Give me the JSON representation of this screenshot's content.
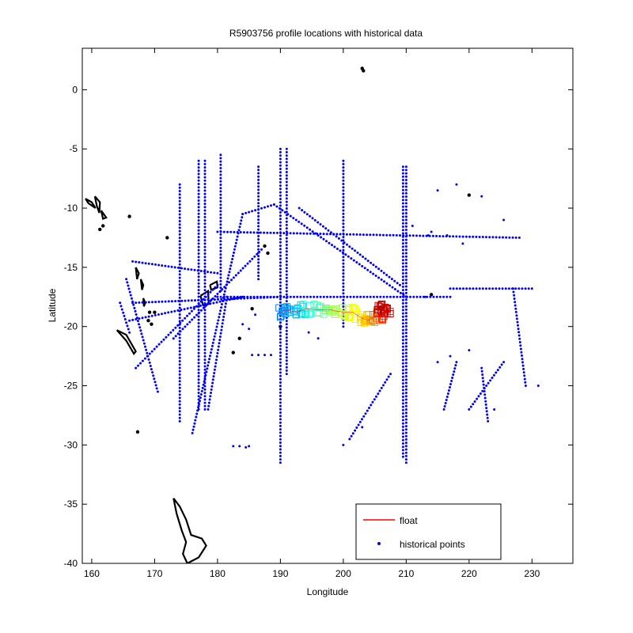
{
  "chart_data": {
    "type": "scatter",
    "title": "R5903756 profile locations with historical data",
    "xlabel": "Longitude",
    "ylabel": "Latitude",
    "xlim": [
      158.5,
      236.5
    ],
    "ylim": [
      -40,
      3.5
    ],
    "xticks": [
      160,
      170,
      180,
      190,
      200,
      210,
      220,
      230
    ],
    "yticks": [
      0,
      -5,
      -10,
      -15,
      -20,
      -25,
      -30,
      -35,
      -40
    ],
    "grid": false,
    "legend": {
      "placement": "bottom-right",
      "entries": [
        {
          "label": "float",
          "color": "#ff0000",
          "marker": "line"
        },
        {
          "label": "historical points",
          "color": "#0000ff",
          "marker": "dot"
        }
      ]
    },
    "series": [
      {
        "name": "historical points",
        "color": "#0000ff",
        "lines": [
          {
            "from": [
              190,
              -5.0
            ],
            "to": [
              190,
              -31.5
            ]
          },
          {
            "from": [
              191,
              -5.0
            ],
            "to": [
              191,
              -24.0
            ]
          },
          {
            "from": [
              209.5,
              -6.5
            ],
            "to": [
              209.5,
              -31.0
            ]
          },
          {
            "from": [
              210,
              -6.5
            ],
            "to": [
              210,
              -31.5
            ]
          },
          {
            "from": [
              177,
              -6.0
            ],
            "to": [
              177,
              -27.0
            ]
          },
          {
            "from": [
              178,
              -6.0
            ],
            "to": [
              178,
              -27.0
            ]
          },
          {
            "from": [
              186.5,
              -6.5
            ],
            "to": [
              186.5,
              -16.0
            ]
          },
          {
            "from": [
              200,
              -6.0
            ],
            "to": [
              200,
              -20.0
            ]
          },
          {
            "from": [
              180.5,
              -5.5
            ],
            "to": [
              180.5,
              -17.0
            ]
          },
          {
            "from": [
              174,
              -8.0
            ],
            "to": [
              174,
              -28.0
            ]
          },
          {
            "from": [
              227,
              -16.8
            ],
            "to": [
              229,
              -25.0
            ]
          },
          {
            "from": [
              166.5,
              -14.5
            ],
            "to": [
              180,
              -15.5
            ]
          },
          {
            "from": [
              166.5,
              -18.0
            ],
            "to": [
              190,
              -17.5
            ]
          },
          {
            "from": [
              180,
              -12.0
            ],
            "to": [
              228,
              -12.5
            ]
          },
          {
            "from": [
              180,
              -17.5
            ],
            "to": [
              217,
              -17.5
            ]
          },
          {
            "from": [
              217,
              -16.8
            ],
            "to": [
              230,
              -16.8
            ]
          },
          {
            "from": [
              184,
              -10.5
            ],
            "to": [
              189,
              -9.7
            ]
          },
          {
            "from": [
              189,
              -9.7
            ],
            "to": [
              210,
              -17.5
            ]
          },
          {
            "from": [
              193,
              -10.0
            ],
            "to": [
              209,
              -16.5
            ]
          },
          {
            "from": [
              184,
              -10.5
            ],
            "to": [
              176,
              -29.0
            ]
          },
          {
            "from": [
              181.5,
              -17.5
            ],
            "to": [
              178.5,
              -27.0
            ]
          },
          {
            "from": [
              167,
              -23.5
            ],
            "to": [
              180,
              -16.5
            ]
          },
          {
            "from": [
              166,
              -19.5
            ],
            "to": [
              184,
              -17.5
            ]
          },
          {
            "from": [
              173,
              -21.0
            ],
            "to": [
              187,
              -13.5
            ]
          },
          {
            "from": [
              207.5,
              -24.0
            ],
            "to": [
              201,
              -29.5
            ]
          },
          {
            "from": [
              222,
              -23.5
            ],
            "to": [
              223,
              -28.0
            ]
          },
          {
            "from": [
              225.5,
              -23.0
            ],
            "to": [
              220,
              -27.0
            ]
          },
          {
            "from": [
              218,
              -23.0
            ],
            "to": [
              216,
              -27.0
            ]
          },
          {
            "from": [
              165.5,
              -16.0
            ],
            "to": [
              170.5,
              -25.5
            ]
          },
          {
            "from": [
              164.5,
              -18.0
            ],
            "to": [
              166,
              -20.5
            ]
          }
        ],
        "points": [
          [
            188.5,
            -22.4
          ],
          [
            187.5,
            -22.4
          ],
          [
            186.5,
            -22.4
          ],
          [
            185.5,
            -22.4
          ],
          [
            184.5,
            -30.2
          ],
          [
            185,
            -30.1
          ],
          [
            183.5,
            -30.1
          ],
          [
            182.5,
            -30.1
          ],
          [
            200,
            -30.0
          ],
          [
            203,
            -28.5
          ],
          [
            184,
            -19.8
          ],
          [
            185,
            -20.2
          ],
          [
            215,
            -23.0
          ],
          [
            220,
            -22.0
          ],
          [
            224,
            -27.0
          ],
          [
            186,
            -19.0
          ],
          [
            196,
            -21.0
          ],
          [
            213,
            -17.5
          ],
          [
            217,
            -22.5
          ],
          [
            194.5,
            -20.5
          ],
          [
            211,
            -11.5
          ],
          [
            213.5,
            -12.3
          ],
          [
            216.5,
            -12.3
          ],
          [
            219,
            -13.0
          ],
          [
            222,
            -9.0
          ],
          [
            215,
            -8.5
          ],
          [
            218,
            -8.0
          ],
          [
            214,
            -12.0
          ],
          [
            225.5,
            -11.0
          ],
          [
            231,
            -25.0
          ]
        ]
      },
      {
        "name": "float",
        "color": "#ff0000",
        "track": [
          {
            "lon": 190.0,
            "lat": -18.8,
            "color": "#0080ff"
          },
          {
            "lon": 191.0,
            "lat": -18.6,
            "color": "#00a0ff"
          },
          {
            "lon": 192.5,
            "lat": -18.8,
            "color": "#00d0ff"
          },
          {
            "lon": 194.0,
            "lat": -18.5,
            "color": "#20ffd0"
          },
          {
            "lon": 196.0,
            "lat": -18.6,
            "color": "#60ff90"
          },
          {
            "lon": 198.0,
            "lat": -18.6,
            "color": "#a0ff50"
          },
          {
            "lon": 200.0,
            "lat": -18.8,
            "color": "#d0ff20"
          },
          {
            "lon": 201.5,
            "lat": -18.8,
            "color": "#ffff00"
          },
          {
            "lon": 203.0,
            "lat": -19.3,
            "color": "#ffd000"
          },
          {
            "lon": 204.0,
            "lat": -19.5,
            "color": "#ffa000"
          },
          {
            "lon": 205.0,
            "lat": -19.2,
            "color": "#ff6000"
          },
          {
            "lon": 206.0,
            "lat": -19.0,
            "color": "#ff2000"
          },
          {
            "lon": 207.0,
            "lat": -18.7,
            "color": "#e00000"
          },
          {
            "lon": 206.0,
            "lat": -18.5,
            "color": "#b00000"
          }
        ]
      },
      {
        "name": "coastline",
        "color": "#000000",
        "outlines": [
          [
            [
              173,
              -34.5
            ],
            [
              174,
              -35.2
            ],
            [
              175,
              -36.3
            ],
            [
              175.8,
              -37.6
            ],
            [
              177.5,
              -37.9
            ],
            [
              178.2,
              -38.5
            ],
            [
              177.0,
              -39.5
            ],
            [
              175.2,
              -40.0
            ],
            [
              174.5,
              -39.2
            ],
            [
              175.0,
              -38.2
            ],
            [
              174.3,
              -37.2
            ],
            [
              173.5,
              -35.8
            ],
            [
              173,
              -34.5
            ]
          ],
          [
            [
              164.0,
              -20.3
            ],
            [
              165.5,
              -21.2
            ],
            [
              166.7,
              -22.3
            ],
            [
              167.0,
              -22.1
            ],
            [
              165.5,
              -20.7
            ],
            [
              164.0,
              -20.3
            ]
          ],
          [
            [
              177.3,
              -17.4
            ],
            [
              178.5,
              -17.0
            ],
            [
              178.6,
              -18.1
            ],
            [
              177.7,
              -18.2
            ],
            [
              177.3,
              -17.4
            ]
          ],
          [
            [
              178.8,
              -16.5
            ],
            [
              179.9,
              -16.2
            ],
            [
              180.0,
              -16.7
            ],
            [
              179.0,
              -16.9
            ],
            [
              178.8,
              -16.5
            ]
          ],
          [
            [
              159.0,
              -9.2
            ],
            [
              160.0,
              -9.5
            ],
            [
              160.6,
              -10.0
            ],
            [
              159.5,
              -9.6
            ],
            [
              159.0,
              -9.2
            ]
          ],
          [
            [
              160.5,
              -9.0
            ],
            [
              161.3,
              -9.5
            ],
            [
              161.2,
              -10.4
            ],
            [
              160.8,
              -9.8
            ],
            [
              160.5,
              -9.0
            ]
          ],
          [
            [
              161.5,
              -10.2
            ],
            [
              162.3,
              -10.8
            ],
            [
              161.8,
              -10.9
            ],
            [
              161.5,
              -10.2
            ]
          ],
          [
            [
              167.0,
              -15.0
            ],
            [
              167.5,
              -15.5
            ],
            [
              167.2,
              -16.0
            ],
            [
              167.0,
              -15.0
            ]
          ],
          [
            [
              167.8,
              -16.0
            ],
            [
              168.2,
              -16.5
            ],
            [
              168.0,
              -16.9
            ],
            [
              167.8,
              -16.0
            ]
          ],
          [
            [
              168.2,
              -17.6
            ],
            [
              168.5,
              -18.0
            ],
            [
              168.3,
              -18.3
            ],
            [
              168.2,
              -17.6
            ]
          ]
        ],
        "points": [
          [
            203,
            1.8
          ],
          [
            203.2,
            1.6
          ],
          [
            166,
            -10.7
          ],
          [
            161.3,
            -11.8
          ],
          [
            172,
            -12.5
          ],
          [
            187.5,
            -13.2
          ],
          [
            188,
            -13.8
          ],
          [
            182.5,
            -22.2
          ],
          [
            183.5,
            -21.0
          ],
          [
            185.5,
            -18.5
          ],
          [
            167.3,
            -28.9
          ],
          [
            169.2,
            -18.8
          ],
          [
            169.0,
            -19.5
          ],
          [
            170.0,
            -18.8
          ],
          [
            220,
            -8.9
          ],
          [
            161.8,
            -11.5
          ],
          [
            214,
            -17.3
          ],
          [
            169.5,
            -19.8
          ],
          [
            190,
            -20.0
          ]
        ]
      }
    ]
  }
}
